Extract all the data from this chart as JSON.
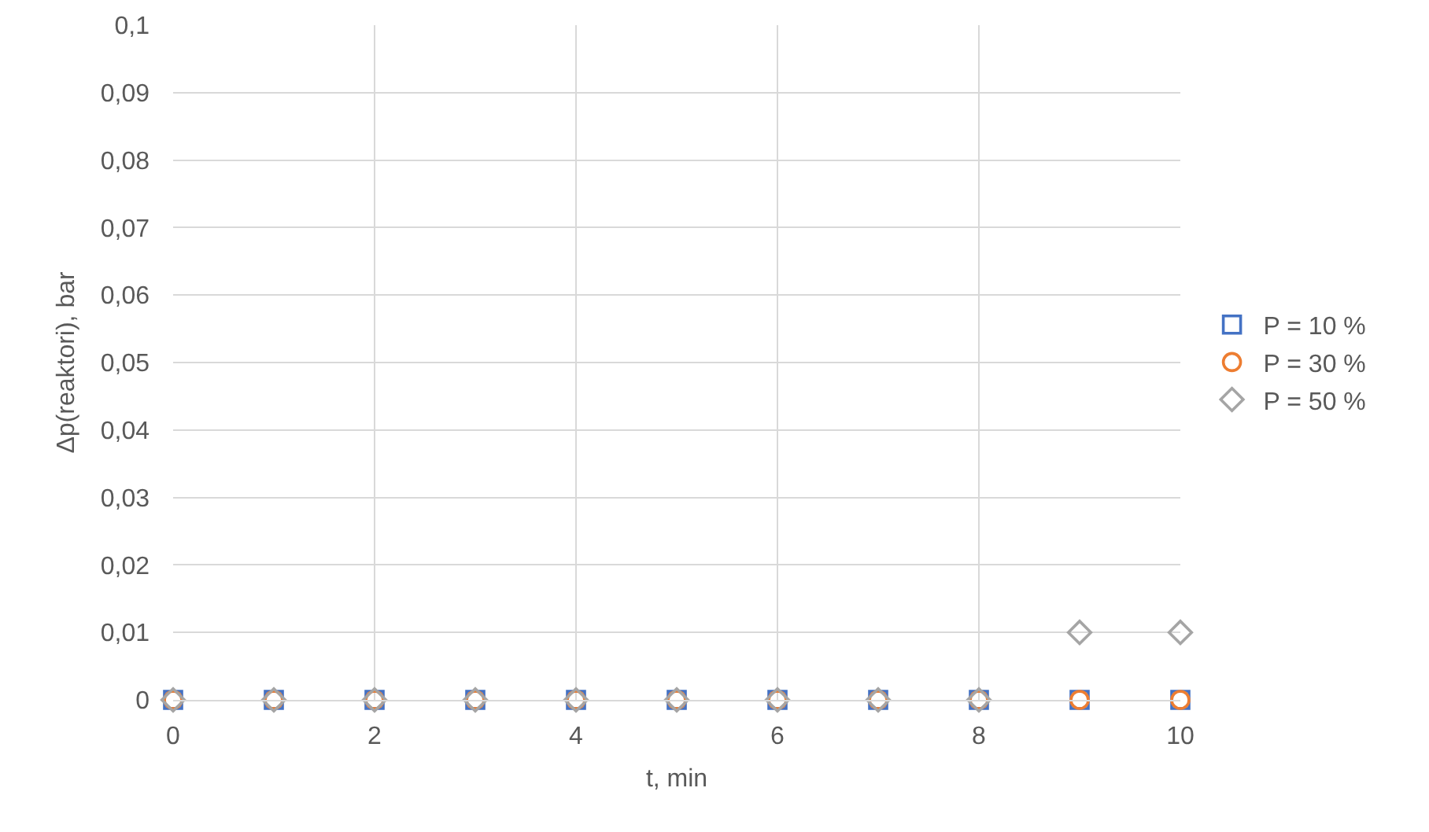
{
  "chart_data": {
    "type": "scatter",
    "xlabel": "t, min",
    "ylabel": "Δp(reaktori), bar",
    "x": [
      0,
      1,
      2,
      3,
      4,
      5,
      6,
      7,
      8,
      9,
      10
    ],
    "series": [
      {
        "name": "P = 10 %",
        "color": "#4472c4",
        "marker": "square",
        "values": [
          0,
          0,
          0,
          0,
          0,
          0,
          0,
          0,
          0,
          0,
          0
        ]
      },
      {
        "name": "P = 30 %",
        "color": "#ed7d31",
        "marker": "circle",
        "values": [
          0,
          0,
          0,
          0,
          0,
          0,
          0,
          0,
          0,
          0,
          0
        ]
      },
      {
        "name": "P = 50 %",
        "color": "#a5a5a5",
        "marker": "diamond",
        "values": [
          0,
          0,
          0,
          0,
          0,
          0,
          0,
          0,
          0,
          0.01,
          0.01
        ]
      }
    ],
    "xlim": [
      0,
      10
    ],
    "xticks": [
      0,
      2,
      4,
      6,
      8,
      10
    ],
    "ylim": [
      0,
      0.1
    ],
    "yticks": [
      {
        "value": 0,
        "label": "0"
      },
      {
        "value": 0.01,
        "label": "0,01"
      },
      {
        "value": 0.02,
        "label": "0,02"
      },
      {
        "value": 0.03,
        "label": "0,03"
      },
      {
        "value": 0.04,
        "label": "0,04"
      },
      {
        "value": 0.05,
        "label": "0,05"
      },
      {
        "value": 0.06,
        "label": "0,06"
      },
      {
        "value": 0.07,
        "label": "0,07"
      },
      {
        "value": 0.08,
        "label": "0,08"
      },
      {
        "value": 0.09,
        "label": "0,09"
      },
      {
        "value": 0.1,
        "label": "0,1"
      }
    ],
    "grid": true,
    "legend": "right"
  }
}
